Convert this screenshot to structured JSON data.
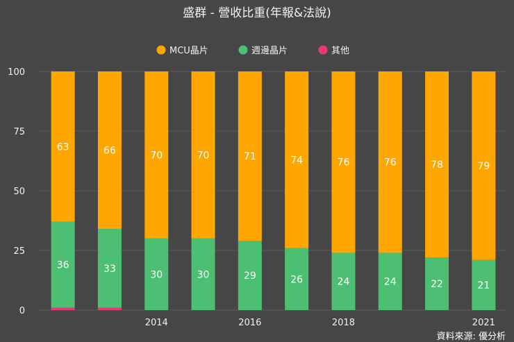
{
  "chart_data": {
    "type": "bar",
    "stacked": true,
    "title": "盛群 - 營收比重(年報&法說)",
    "categories": [
      "",
      "",
      "2014",
      "",
      "2016",
      "",
      "2018",
      "",
      "",
      "2021"
    ],
    "series": [
      {
        "name": "其他",
        "color": "#e8397a",
        "values": [
          1,
          1,
          0,
          0,
          0,
          0,
          0,
          0,
          0,
          0
        ]
      },
      {
        "name": "週邊晶片",
        "color": "#4cbf72",
        "values": [
          36,
          33,
          30,
          30,
          29,
          26,
          24,
          24,
          22,
          21
        ]
      },
      {
        "name": "MCU晶片",
        "color": "#ffa600",
        "values": [
          63,
          66,
          70,
          70,
          71,
          74,
          76,
          76,
          78,
          79
        ]
      }
    ],
    "legend_order": [
      "MCU晶片",
      "週邊晶片",
      "其他"
    ],
    "yticks": [
      0,
      25,
      50,
      75,
      100
    ],
    "ylim": [
      0,
      100
    ],
    "xlabel": "",
    "ylabel": "",
    "source": "資料來源: 優分析"
  }
}
